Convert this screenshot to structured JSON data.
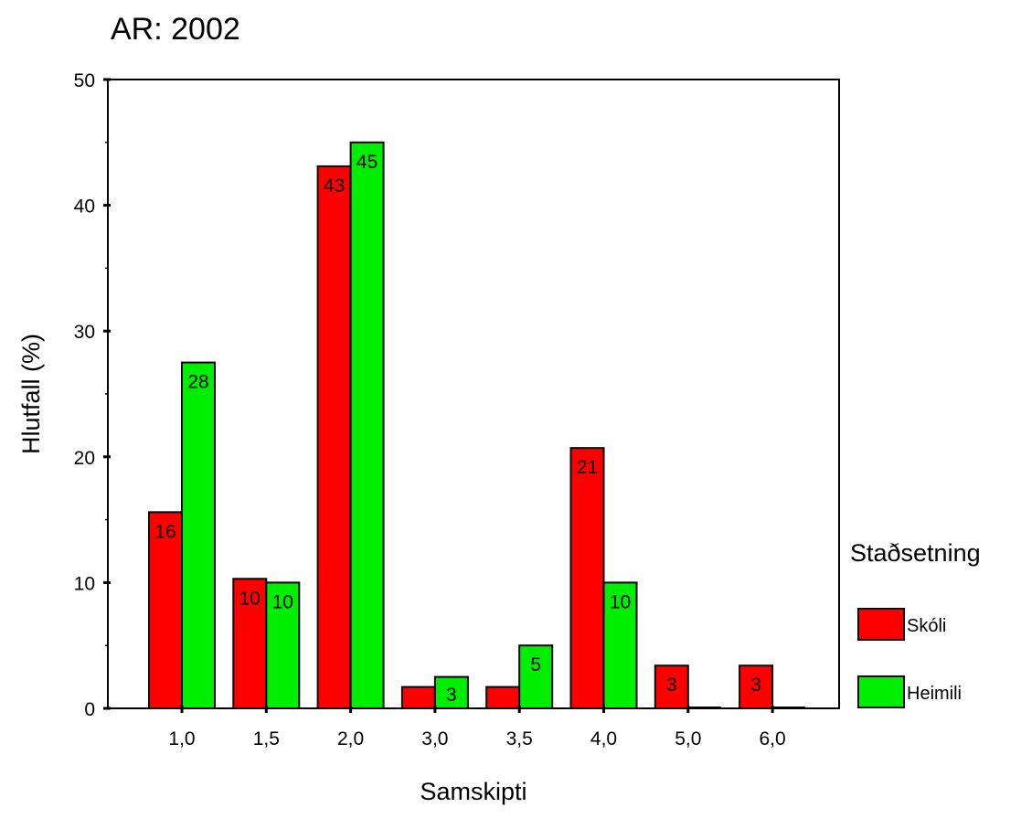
{
  "chart_data": {
    "type": "bar",
    "title": "AR: 2002",
    "xlabel": "Samskipti",
    "ylabel": "Hlutfall (%)",
    "ylim": [
      0,
      50
    ],
    "yticks": [
      0,
      10,
      20,
      30,
      40,
      50
    ],
    "grid": false,
    "categories": [
      "1,0",
      "1,5",
      "2,0",
      "3,0",
      "3,5",
      "4,0",
      "5,0",
      "6,0"
    ],
    "series": [
      {
        "name": "Skóli",
        "color": "#ff0000",
        "values": [
          15.6,
          10.3,
          43.1,
          1.7,
          1.7,
          20.7,
          3.4,
          3.4
        ],
        "labels": [
          "16",
          "10",
          "43",
          "",
          "",
          "21",
          "3",
          "3"
        ]
      },
      {
        "name": "Heimili",
        "color": "#00ee00",
        "values": [
          27.5,
          10.0,
          45.0,
          2.5,
          5.0,
          10.0,
          0,
          0
        ],
        "labels": [
          "28",
          "10",
          "45",
          "3",
          "5",
          "10",
          "",
          ""
        ]
      }
    ],
    "legend": {
      "title": "Staðsetning",
      "position": "right"
    }
  }
}
